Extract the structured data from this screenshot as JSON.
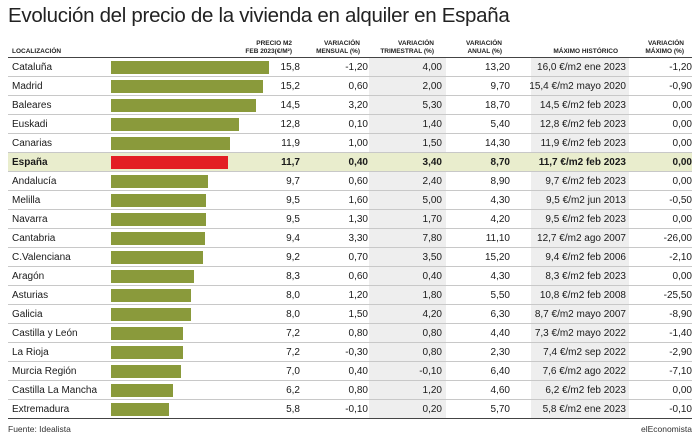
{
  "title": "Evolución del precio de la vivienda en alquiler en España",
  "headers": {
    "location": "LOCALIZACIÓN",
    "price_line1": "PRECIO M2",
    "price_line2": "FEB 2023(€/m²)",
    "monthly_line1": "VARIACIÓN",
    "monthly_line2": "MENSUAL (%)",
    "quarterly_line1": "VARIACIÓN",
    "quarterly_line2": "TRIMESTRAL (%)",
    "annual_line1": "VARIACIÓN",
    "annual_line2": "ANUAL (%)",
    "historic": "MÁXIMO HISTÓRICO",
    "from_max_line1": "VARIACIÓN",
    "from_max_line2": "MÁXIMO (%)"
  },
  "colors": {
    "bar": "#8a9a3b",
    "highlight_bar": "#e31e24",
    "highlight_row": "#e9edcd",
    "shade": "#eeeeee"
  },
  "rows": [
    {
      "name": "Cataluña",
      "price": "15,8",
      "monthly": "-1,20",
      "quarterly": "4,00",
      "annual": "13,20",
      "historic": "16,0 €/m2 ene 2023",
      "from_max": "-1,20"
    },
    {
      "name": "Madrid",
      "price": "15,2",
      "monthly": "0,60",
      "quarterly": "2,00",
      "annual": "9,70",
      "historic": "15,4 €/m2 mayo 2020",
      "from_max": "-0,90"
    },
    {
      "name": "Baleares",
      "price": "14,5",
      "monthly": "3,20",
      "quarterly": "5,30",
      "annual": "18,70",
      "historic": "14,5 €/m2 feb 2023",
      "from_max": "0,00"
    },
    {
      "name": "Euskadi",
      "price": "12,8",
      "monthly": "0,10",
      "quarterly": "1,40",
      "annual": "5,40",
      "historic": "12,8 €/m2 feb 2023",
      "from_max": "0,00"
    },
    {
      "name": "Canarias",
      "price": "11,9",
      "monthly": "1,00",
      "quarterly": "1,50",
      "annual": "14,30",
      "historic": "11,9 €/m2 feb 2023",
      "from_max": "0,00"
    },
    {
      "name": "España",
      "price": "11,7",
      "monthly": "0,40",
      "quarterly": "3,40",
      "annual": "8,70",
      "historic": "11,7 €/m2 feb 2023",
      "from_max": "0,00",
      "highlight": true
    },
    {
      "name": "Andalucía",
      "price": "9,7",
      "monthly": "0,60",
      "quarterly": "2,40",
      "annual": "8,90",
      "historic": "9,7 €/m2 feb 2023",
      "from_max": "0,00"
    },
    {
      "name": "Melilla",
      "price": "9,5",
      "monthly": "1,60",
      "quarterly": "5,00",
      "annual": "4,30",
      "historic": "9,5 €/m2 jun 2013",
      "from_max": "-0,50"
    },
    {
      "name": "Navarra",
      "price": "9,5",
      "monthly": "1,30",
      "quarterly": "1,70",
      "annual": "4,20",
      "historic": "9,5 €/m2 feb 2023",
      "from_max": "0,00"
    },
    {
      "name": "Cantabria",
      "price": "9,4",
      "monthly": "3,30",
      "quarterly": "7,80",
      "annual": "11,10",
      "historic": "12,7 €/m2 ago 2007",
      "from_max": "-26,00"
    },
    {
      "name": "C.Valenciana",
      "price": "9,2",
      "monthly": "0,70",
      "quarterly": "3,50",
      "annual": "15,20",
      "historic": "9,4 €/m2 feb 2006",
      "from_max": "-2,10"
    },
    {
      "name": "Aragón",
      "price": "8,3",
      "monthly": "0,60",
      "quarterly": "0,40",
      "annual": "4,30",
      "historic": "8,3 €/m2 feb 2023",
      "from_max": "0,00"
    },
    {
      "name": "Asturias",
      "price": "8,0",
      "monthly": "1,20",
      "quarterly": "1,80",
      "annual": "5,50",
      "historic": "10,8 €/m2 feb 2008",
      "from_max": "-25,50"
    },
    {
      "name": "Galicia",
      "price": "8,0",
      "monthly": "1,50",
      "quarterly": "4,20",
      "annual": "6,30",
      "historic": "8,7 €/m2 mayo 2007",
      "from_max": "-8,90"
    },
    {
      "name": "Castilla y León",
      "price": "7,2",
      "monthly": "0,80",
      "quarterly": "0,80",
      "annual": "4,40",
      "historic": "7,3 €/m2 mayo 2022",
      "from_max": "-1,40"
    },
    {
      "name": "La Rioja",
      "price": "7,2",
      "monthly": "-0,30",
      "quarterly": "0,80",
      "annual": "2,30",
      "historic": "7,4 €/m2 sep 2022",
      "from_max": "-2,90"
    },
    {
      "name": "Murcia Región",
      "price": "7,0",
      "monthly": "0,40",
      "quarterly": "-0,10",
      "annual": "6,40",
      "historic": "7,6 €/m2 ago 2022",
      "from_max": "-7,10"
    },
    {
      "name": "Castilla La Mancha",
      "price": "6,2",
      "monthly": "0,80",
      "quarterly": "1,20",
      "annual": "4,60",
      "historic": "6,2 €/m2 feb 2023",
      "from_max": "0,00"
    },
    {
      "name": "Extremadura",
      "price": "5,8",
      "monthly": "-0,10",
      "quarterly": "0,20",
      "annual": "5,70",
      "historic": "5,8 €/m2 ene 2023",
      "from_max": "-0,10"
    }
  ],
  "chart_data": {
    "type": "bar",
    "categories": [
      "Cataluña",
      "Madrid",
      "Baleares",
      "Euskadi",
      "Canarias",
      "España",
      "Andalucía",
      "Melilla",
      "Navarra",
      "Cantabria",
      "C.Valenciana",
      "Aragón",
      "Asturias",
      "Galicia",
      "Castilla y León",
      "La Rioja",
      "Murcia Región",
      "Castilla La Mancha",
      "Extremadura"
    ],
    "values": [
      15.8,
      15.2,
      14.5,
      12.8,
      11.9,
      11.7,
      9.7,
      9.5,
      9.5,
      9.4,
      9.2,
      8.3,
      8.0,
      8.0,
      7.2,
      7.2,
      7.0,
      6.2,
      5.8
    ],
    "title": "Evolución del precio de la vivienda en alquiler en España",
    "xlabel": "",
    "ylabel": "PRECIO M2 FEB 2023(€/m²)"
  },
  "footer": {
    "source": "Fuente: Idealista",
    "brand": "elEconomista"
  }
}
